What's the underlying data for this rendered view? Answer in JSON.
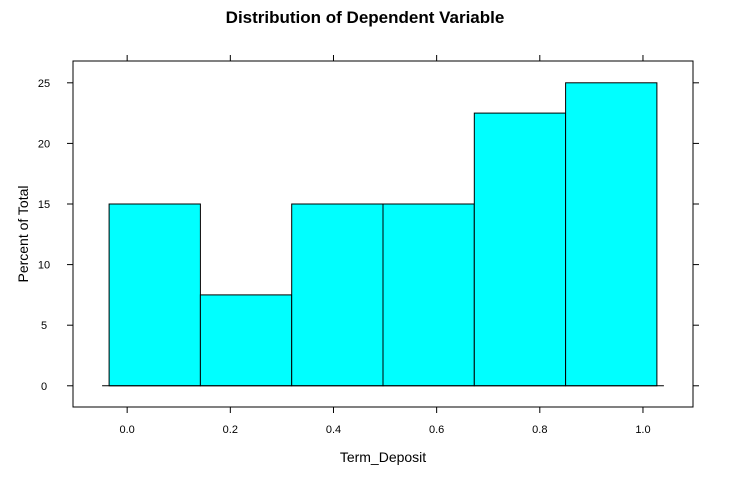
{
  "chart_data": {
    "type": "bar",
    "title": "Distribution of Dependent Variable",
    "xlabel": "Term_Deposit",
    "ylabel": "Percent of Total",
    "bins": [
      {
        "x0": -0.035,
        "x1": 0.142,
        "value": 15
      },
      {
        "x0": 0.142,
        "x1": 0.319,
        "value": 7.5
      },
      {
        "x0": 0.319,
        "x1": 0.496,
        "value": 15
      },
      {
        "x0": 0.496,
        "x1": 0.673,
        "value": 15
      },
      {
        "x0": 0.673,
        "x1": 0.85,
        "value": 22.5
      },
      {
        "x0": 0.85,
        "x1": 1.027,
        "value": 25
      }
    ],
    "xlim": [
      -0.105,
      1.097
    ],
    "ylim": [
      -1.75,
      26.8
    ],
    "x_ticks": [
      "0.0",
      "0.2",
      "0.4",
      "0.6",
      "0.8",
      "1.0"
    ],
    "y_ticks": [
      "0",
      "5",
      "10",
      "15",
      "20",
      "25"
    ],
    "bar_color": "#00ffff",
    "bar_edge_color": "#000000",
    "grid": false,
    "legend": "none"
  }
}
